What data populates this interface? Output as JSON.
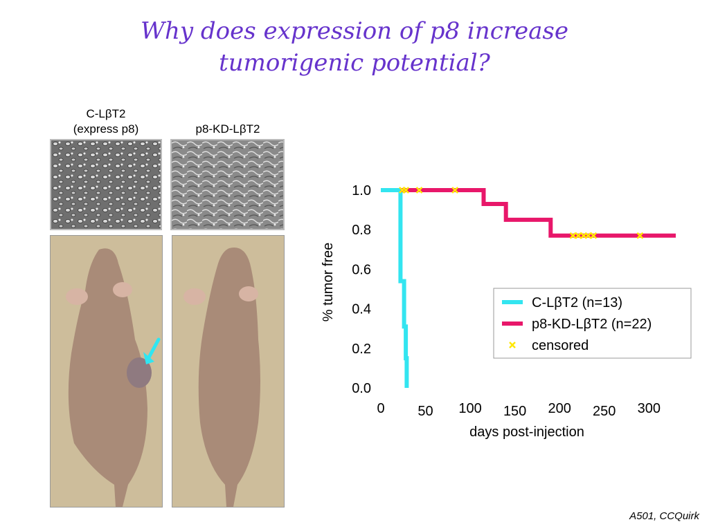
{
  "title": {
    "line1": "Why does expression of p8 increase",
    "line2": "tumorigenic potential?"
  },
  "panels": {
    "left": {
      "label1": "C-LβT2",
      "label2": "(express p8)"
    },
    "right": {
      "label": "p8-KD-LβT2"
    }
  },
  "credit": "A501, CCQuirk",
  "chart_data": {
    "type": "line",
    "step": true,
    "xlabel": "days post-injection",
    "ylabel": "% tumor free",
    "x_ticks": [
      0,
      50,
      100,
      150,
      200,
      250,
      300
    ],
    "y_ticks": [
      "0.0",
      "0.2",
      "0.4",
      "0.6",
      "0.8",
      "1.0"
    ],
    "xlim": [
      0,
      330
    ],
    "ylim": [
      0,
      1
    ],
    "axes_visible": false,
    "series": [
      {
        "name": "C-LβT2 (n=13)",
        "color": "#33e5f0",
        "x": [
          0,
          22,
          22,
          26,
          26,
          28,
          28,
          29,
          29
        ],
        "y": [
          1.0,
          1.0,
          0.54,
          0.54,
          0.31,
          0.31,
          0.15,
          0.15,
          0.0
        ]
      },
      {
        "name": "p8-KD-LβT2 (n=22)",
        "color": "#e8176a",
        "x": [
          22,
          115,
          115,
          140,
          140,
          190,
          190,
          330
        ],
        "y": [
          1.0,
          1.0,
          0.93,
          0.93,
          0.85,
          0.85,
          0.77,
          0.77
        ]
      }
    ],
    "censored": {
      "name": "censored",
      "color": "#ffe800",
      "x": [
        24,
        28,
        43,
        83,
        215,
        221,
        227,
        232,
        238,
        290
      ],
      "y": [
        1.0,
        1.0,
        1.0,
        1.0,
        0.77,
        0.77,
        0.77,
        0.77,
        0.77,
        0.77
      ]
    },
    "legend_position": "right"
  }
}
